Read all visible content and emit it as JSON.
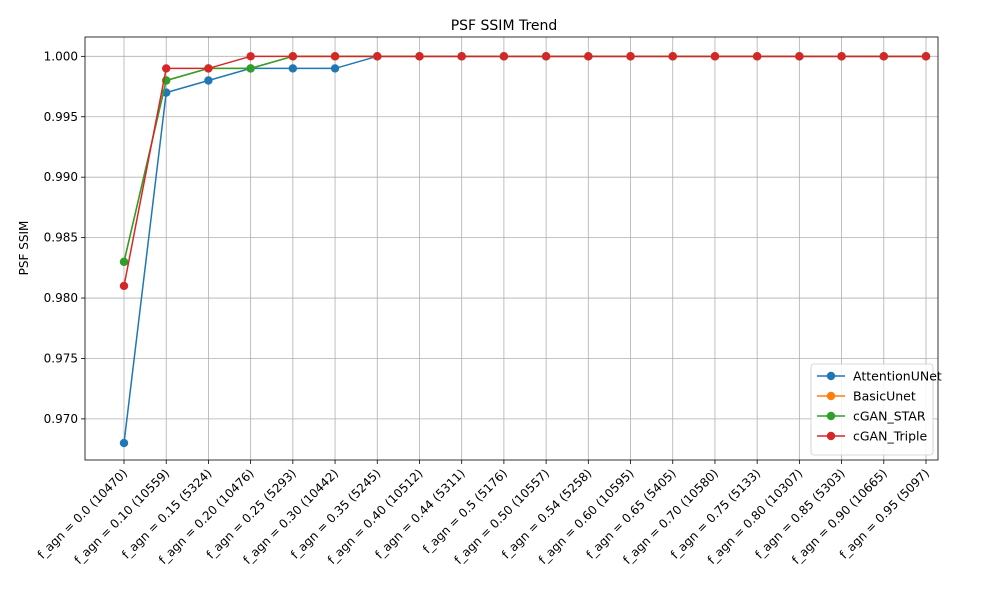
{
  "chart_data": {
    "type": "line",
    "title": "PSF SSIM Trend",
    "xlabel": "",
    "ylabel": "PSF SSIM",
    "ylim": [
      0.9666,
      1.0016
    ],
    "yticks": [
      0.97,
      0.975,
      0.98,
      0.985,
      0.99,
      0.995,
      1.0
    ],
    "ytick_labels": [
      "0.970",
      "0.975",
      "0.980",
      "0.985",
      "0.990",
      "0.995",
      "1.000"
    ],
    "grid": true,
    "legend_position": "lower-right",
    "categories": [
      "f_agn = 0.0 (10470)",
      "f_agn = 0.10 (10559)",
      "f_agn = 0.15 (5324)",
      "f_agn = 0.20 (10476)",
      "f_agn = 0.25 (5293)",
      "f_agn = 0.30 (10442)",
      "f_agn = 0.35 (5245)",
      "f_agn = 0.40 (10512)",
      "f_agn = 0.44 (5311)",
      "f_agn = 0.5 (5176)",
      "f_agn = 0.50 (10557)",
      "f_agn = 0.54 (5258)",
      "f_agn = 0.60 (10595)",
      "f_agn = 0.65 (5405)",
      "f_agn = 0.70 (10580)",
      "f_agn = 0.75 (5133)",
      "f_agn = 0.80 (10307)",
      "f_agn = 0.85 (5303)",
      "f_agn = 0.90 (10665)",
      "f_agn = 0.95 (5097)"
    ],
    "series": [
      {
        "name": "AttentionUNet",
        "color": "#1f77b4",
        "values": [
          0.968,
          0.997,
          0.998,
          0.999,
          0.999,
          0.999,
          1.0,
          1.0,
          1.0,
          1.0,
          1.0,
          1.0,
          1.0,
          1.0,
          1.0,
          1.0,
          1.0,
          1.0,
          1.0,
          1.0
        ]
      },
      {
        "name": "BasicUnet",
        "color": "#ff7f0e",
        "values": [
          0.983,
          0.998,
          0.999,
          0.999,
          1.0,
          1.0,
          1.0,
          1.0,
          1.0,
          1.0,
          1.0,
          1.0,
          1.0,
          1.0,
          1.0,
          1.0,
          1.0,
          1.0,
          1.0,
          1.0
        ]
      },
      {
        "name": "cGAN_STAR",
        "color": "#2ca02c",
        "values": [
          0.983,
          0.998,
          0.999,
          0.999,
          1.0,
          1.0,
          1.0,
          1.0,
          1.0,
          1.0,
          1.0,
          1.0,
          1.0,
          1.0,
          1.0,
          1.0,
          1.0,
          1.0,
          1.0,
          1.0
        ]
      },
      {
        "name": "cGAN_Triple",
        "color": "#d62728",
        "values": [
          0.981,
          0.999,
          0.999,
          1.0,
          1.0,
          1.0,
          1.0,
          1.0,
          1.0,
          1.0,
          1.0,
          1.0,
          1.0,
          1.0,
          1.0,
          1.0,
          1.0,
          1.0,
          1.0,
          1.0
        ]
      }
    ]
  }
}
